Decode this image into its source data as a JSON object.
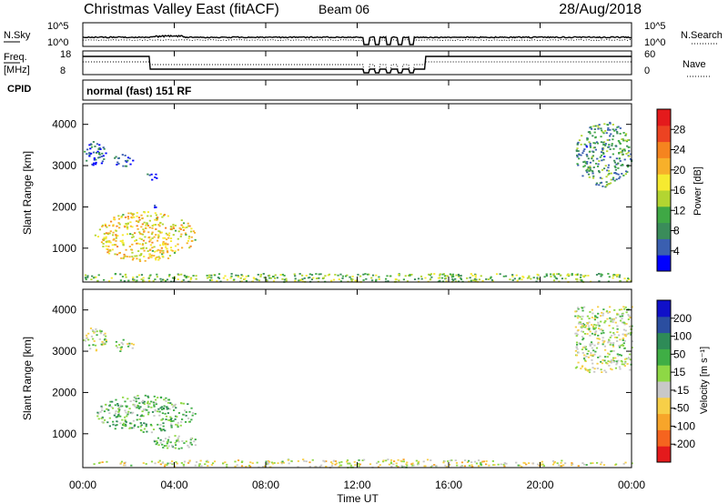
{
  "header": {
    "site": "Christmas Valley East (fitACF)",
    "beam": "Beam 06",
    "date": "28/Aug/2018"
  },
  "param_panels": {
    "noise": {
      "left_label": "N.Sky",
      "right_label": "N.Search",
      "left_ticks": [
        "10^5",
        "10^0"
      ],
      "right_ticks": [
        "10^5",
        "10^0"
      ]
    },
    "freq": {
      "left_label_1": "Freq.",
      "left_label_2": "[MHz]",
      "right_label": "Nave",
      "left_ticks": [
        "18",
        "8"
      ],
      "right_ticks": [
        "60",
        "0"
      ]
    },
    "cpid_label": "CPID",
    "cpid_text": "normal (fast) 151 RF"
  },
  "axes": {
    "ylabel": "Slant Range [km]",
    "xlabel": "Time UT",
    "xticks": [
      "00:00",
      "04:00",
      "08:00",
      "12:00",
      "16:00",
      "20:00",
      "00:00"
    ],
    "xlim": [
      0,
      24
    ],
    "yticks": [
      "1000",
      "2000",
      "3000",
      "4000"
    ],
    "ylim": [
      180,
      4500
    ]
  },
  "chart_data": [
    {
      "type": "heatmap",
      "panel": "power",
      "zlabel": "Power [dB]",
      "colorbar_ticks": [
        "4",
        "8",
        "12",
        "16",
        "20",
        "24",
        "28"
      ],
      "zlim": [
        0,
        30
      ],
      "colors": [
        "#0000ff",
        "#3a5fb0",
        "#3a8c5a",
        "#3fa845",
        "#b3d531",
        "#f6ea30",
        "#f7b02a",
        "#f5841f",
        "#ec4322",
        "#e41a1c"
      ],
      "regions": [
        {
          "t": [
            0.0,
            1.0
          ],
          "r": [
            3000,
            3600
          ],
          "v": 5
        },
        {
          "t": [
            1.3,
            2.2
          ],
          "r": [
            3000,
            3300
          ],
          "v": 4
        },
        {
          "t": [
            2.7,
            3.4
          ],
          "r": [
            2650,
            2850
          ],
          "v": 4
        },
        {
          "t": [
            3.0,
            3.3
          ],
          "r": [
            2000,
            2150
          ],
          "v": 6
        },
        {
          "t": [
            0.5,
            4.9
          ],
          "r": [
            700,
            1900
          ],
          "v": 17
        },
        {
          "t": [
            0.0,
            24.0
          ],
          "r": [
            200,
            400
          ],
          "v": 12
        },
        {
          "t": [
            21.5,
            24.0
          ],
          "r": [
            2500,
            4100
          ],
          "v": 8
        }
      ]
    },
    {
      "type": "heatmap",
      "panel": "velocity",
      "zlabel": "Velocity [m s⁻¹]",
      "colorbar_ticks": [
        "200",
        "100",
        "50",
        "15",
        "-15",
        "-50",
        "-100",
        "-200"
      ],
      "zlim": [
        -250,
        250
      ],
      "colors": [
        "#e41a1c",
        "#f5641f",
        "#f7a52a",
        "#f7cf48",
        "#c8c8c8",
        "#8ed845",
        "#3fae45",
        "#2e8b57",
        "#2b4ea0",
        "#1010c8"
      ],
      "regions": [
        {
          "t": [
            0.0,
            1.0
          ],
          "r": [
            3000,
            3600
          ],
          "v": 0
        },
        {
          "t": [
            1.3,
            2.2
          ],
          "r": [
            3000,
            3300
          ],
          "v": 0
        },
        {
          "t": [
            0.5,
            4.9
          ],
          "r": [
            1050,
            1950
          ],
          "v": 50
        },
        {
          "t": [
            3.0,
            5.0
          ],
          "r": [
            650,
            1000
          ],
          "v": 40
        },
        {
          "t": [
            0.0,
            24.0
          ],
          "r": [
            200,
            400
          ],
          "v": -30
        },
        {
          "t": [
            21.5,
            24.0
          ],
          "r": [
            2500,
            4100
          ],
          "v": 0
        }
      ]
    }
  ]
}
